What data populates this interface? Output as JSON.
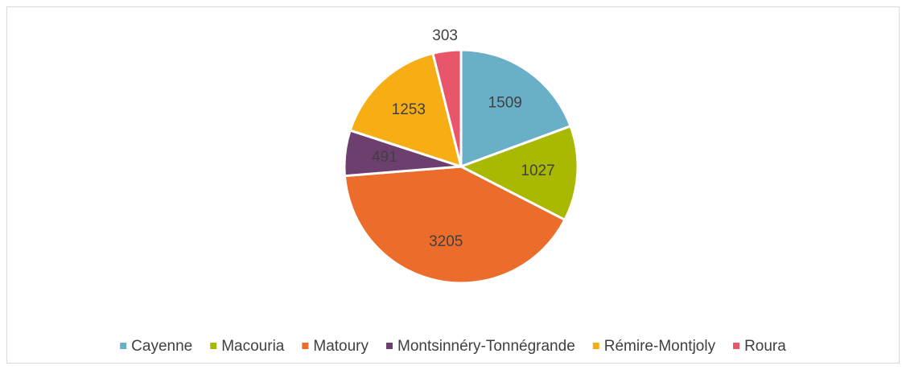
{
  "chart_data": {
    "type": "pie",
    "categories": [
      "Cayenne",
      "Macouria",
      "Matoury",
      "Montsinnéry-Tonnégrande",
      "Rémire-Montjoly",
      "Roura"
    ],
    "values": [
      1509,
      1027,
      3205,
      491,
      1253,
      303
    ],
    "colors": [
      "#6aafc8",
      "#a9b800",
      "#ec6d2b",
      "#6d3f6e",
      "#f6ae14",
      "#e8566c"
    ],
    "legend": "bottom"
  }
}
